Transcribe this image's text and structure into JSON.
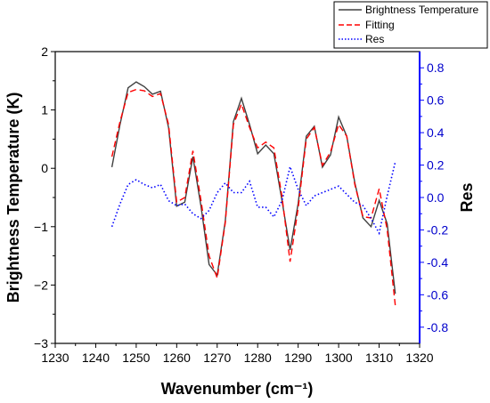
{
  "chart_data": {
    "type": "line",
    "xlabel": "Wavenumber (cm⁻¹)",
    "ylabel": "Brightness Temperature (K)",
    "y2label": "Res",
    "xlim": [
      1230,
      1320
    ],
    "ylim": [
      -3,
      2
    ],
    "y2lim": [
      -0.9,
      0.9
    ],
    "x_ticks": [
      1230,
      1240,
      1250,
      1260,
      1270,
      1280,
      1290,
      1300,
      1310,
      1320
    ],
    "y_ticks": [
      -3,
      -2,
      -1,
      0,
      1,
      2
    ],
    "y2_ticks": [
      -0.8,
      -0.6,
      -0.4,
      -0.2,
      0.0,
      0.2,
      0.4,
      0.6,
      0.8
    ],
    "y2_tick_labels": [
      "-0.8",
      "-0.6",
      "-0.4",
      "-0.2",
      "0.0",
      "0.2",
      "0.4",
      "0.6",
      "0.8"
    ],
    "legend_position": "top-right",
    "series": [
      {
        "name": "Brightness Temperature",
        "axis": "left",
        "color": "#404040",
        "style": "solid",
        "x": [
          1244,
          1246,
          1248,
          1250,
          1252,
          1254,
          1256,
          1258,
          1260,
          1262,
          1264,
          1266,
          1268,
          1270,
          1272,
          1274,
          1276,
          1278,
          1280,
          1282,
          1284,
          1286,
          1288,
          1290,
          1292,
          1294,
          1296,
          1298,
          1300,
          1302,
          1304,
          1306,
          1308,
          1310,
          1312,
          1314
        ],
        "y": [
          0.02,
          0.75,
          1.38,
          1.48,
          1.4,
          1.27,
          1.32,
          0.7,
          -0.65,
          -0.58,
          0.2,
          -0.65,
          -1.65,
          -1.83,
          -0.9,
          0.8,
          1.2,
          0.75,
          0.25,
          0.4,
          0.25,
          -0.55,
          -1.4,
          -0.6,
          0.55,
          0.72,
          0.02,
          0.23,
          0.88,
          0.55,
          -0.25,
          -0.85,
          -1.0,
          -0.55,
          -0.95,
          -2.15
        ]
      },
      {
        "name": "Fitting",
        "axis": "left",
        "color": "#ff0000",
        "style": "dashed",
        "x": [
          1244,
          1246,
          1248,
          1250,
          1252,
          1254,
          1256,
          1258,
          1260,
          1262,
          1264,
          1266,
          1268,
          1270,
          1272,
          1274,
          1276,
          1278,
          1280,
          1282,
          1284,
          1286,
          1288,
          1290,
          1292,
          1294,
          1296,
          1298,
          1300,
          1302,
          1304,
          1306,
          1308,
          1310,
          1312,
          1314
        ],
        "y": [
          0.2,
          0.8,
          1.3,
          1.35,
          1.33,
          1.23,
          1.28,
          0.75,
          -0.58,
          -0.5,
          0.3,
          -0.55,
          -1.5,
          -1.88,
          -0.93,
          0.75,
          1.1,
          0.7,
          0.35,
          0.45,
          0.35,
          -0.48,
          -1.6,
          -0.68,
          0.5,
          0.7,
          0.05,
          0.28,
          0.75,
          0.55,
          -0.28,
          -0.83,
          -0.85,
          -0.35,
          -1.05,
          -2.35
        ]
      },
      {
        "name": "Res",
        "axis": "right",
        "color": "#0000ff",
        "style": "dotted",
        "x": [
          1244,
          1246,
          1248,
          1250,
          1252,
          1254,
          1256,
          1258,
          1260,
          1262,
          1264,
          1266,
          1268,
          1270,
          1272,
          1274,
          1276,
          1278,
          1280,
          1282,
          1284,
          1286,
          1288,
          1290,
          1292,
          1294,
          1296,
          1298,
          1300,
          1302,
          1304,
          1306,
          1308,
          1310,
          1312,
          1314
        ],
        "y": [
          -0.18,
          -0.04,
          0.08,
          0.11,
          0.08,
          0.06,
          0.08,
          -0.02,
          -0.05,
          -0.04,
          -0.1,
          -0.13,
          -0.08,
          0.03,
          0.09,
          0.03,
          0.03,
          0.1,
          -0.06,
          -0.06,
          -0.12,
          -0.02,
          0.19,
          0.05,
          -0.05,
          0.01,
          0.03,
          0.05,
          0.07,
          0.02,
          -0.03,
          -0.05,
          -0.13,
          -0.22,
          0.01,
          0.22
        ]
      }
    ]
  }
}
